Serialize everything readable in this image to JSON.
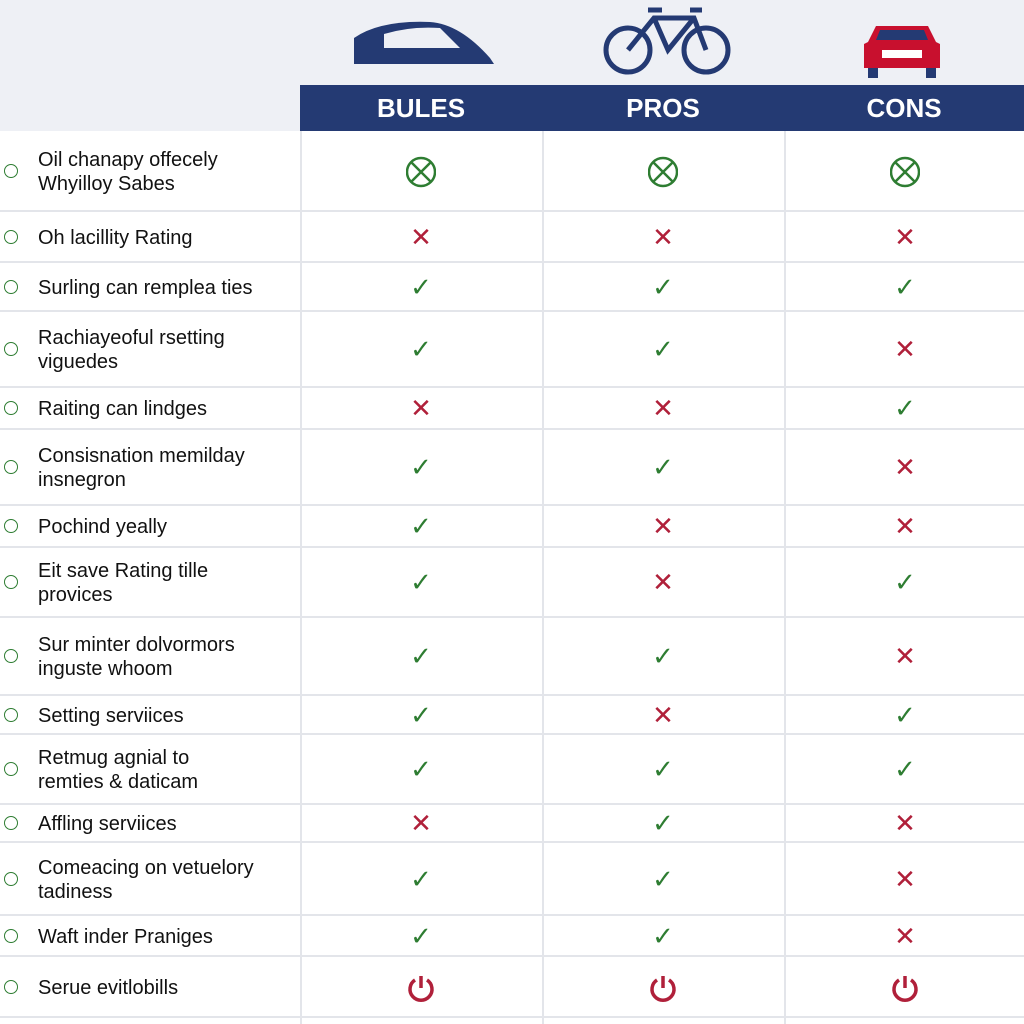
{
  "table": {
    "headers": [
      "BULES",
      "PROS",
      "CONS"
    ],
    "rows": [
      {
        "label": "Oil chanapy offecely\nWhyilloy Sabes"
      },
      {
        "label": "Oh lacillity Rating",
        "cells": [
          "✕",
          "✕",
          "✕"
        ]
      },
      {
        "label": "Surling can remplea ties",
        "cells": [
          "✓",
          "✓",
          "✓"
        ]
      },
      {
        "label": "Rachiayeoful rsetting\nviguedes",
        "cells": [
          "✓",
          "✓",
          "✕"
        ]
      },
      {
        "label": "Raiting can lindges",
        "cells": [
          "✕",
          "✕",
          "✓"
        ]
      },
      {
        "label": "Consisnation memilday\ninsnegron",
        "cells": [
          "✓",
          "✓",
          "✕"
        ]
      },
      {
        "label": "Pochind yeally",
        "cells": [
          "✓",
          "✕",
          "✕"
        ]
      },
      {
        "label": "Eit save Rating  tille\nprovices",
        "cells": [
          "✓",
          "✕",
          "✓"
        ]
      },
      {
        "label": "Sur minter dolvormors\ninguste whoom",
        "cells": [
          "✓",
          "✓",
          "✕"
        ]
      },
      {
        "label": "Setting serviices",
        "cells": [
          "✓",
          "✕",
          "✓"
        ]
      },
      {
        "label": "Retmug agnial to\nremties & daticam",
        "cells": [
          "✓",
          "✓",
          "✓"
        ]
      },
      {
        "label": "Affling serviices",
        "cells": [
          "✕",
          "✓",
          "✕"
        ]
      },
      {
        "label": "Comeacing on vetuelory\ntadiness",
        "cells": [
          "✓",
          "✓",
          "✕"
        ]
      },
      {
        "label": "Waft inder Praniges",
        "cells": [
          "✓",
          "✓",
          "✕"
        ]
      },
      {
        "label": "Serue evitlobills"
      }
    ]
  }
}
